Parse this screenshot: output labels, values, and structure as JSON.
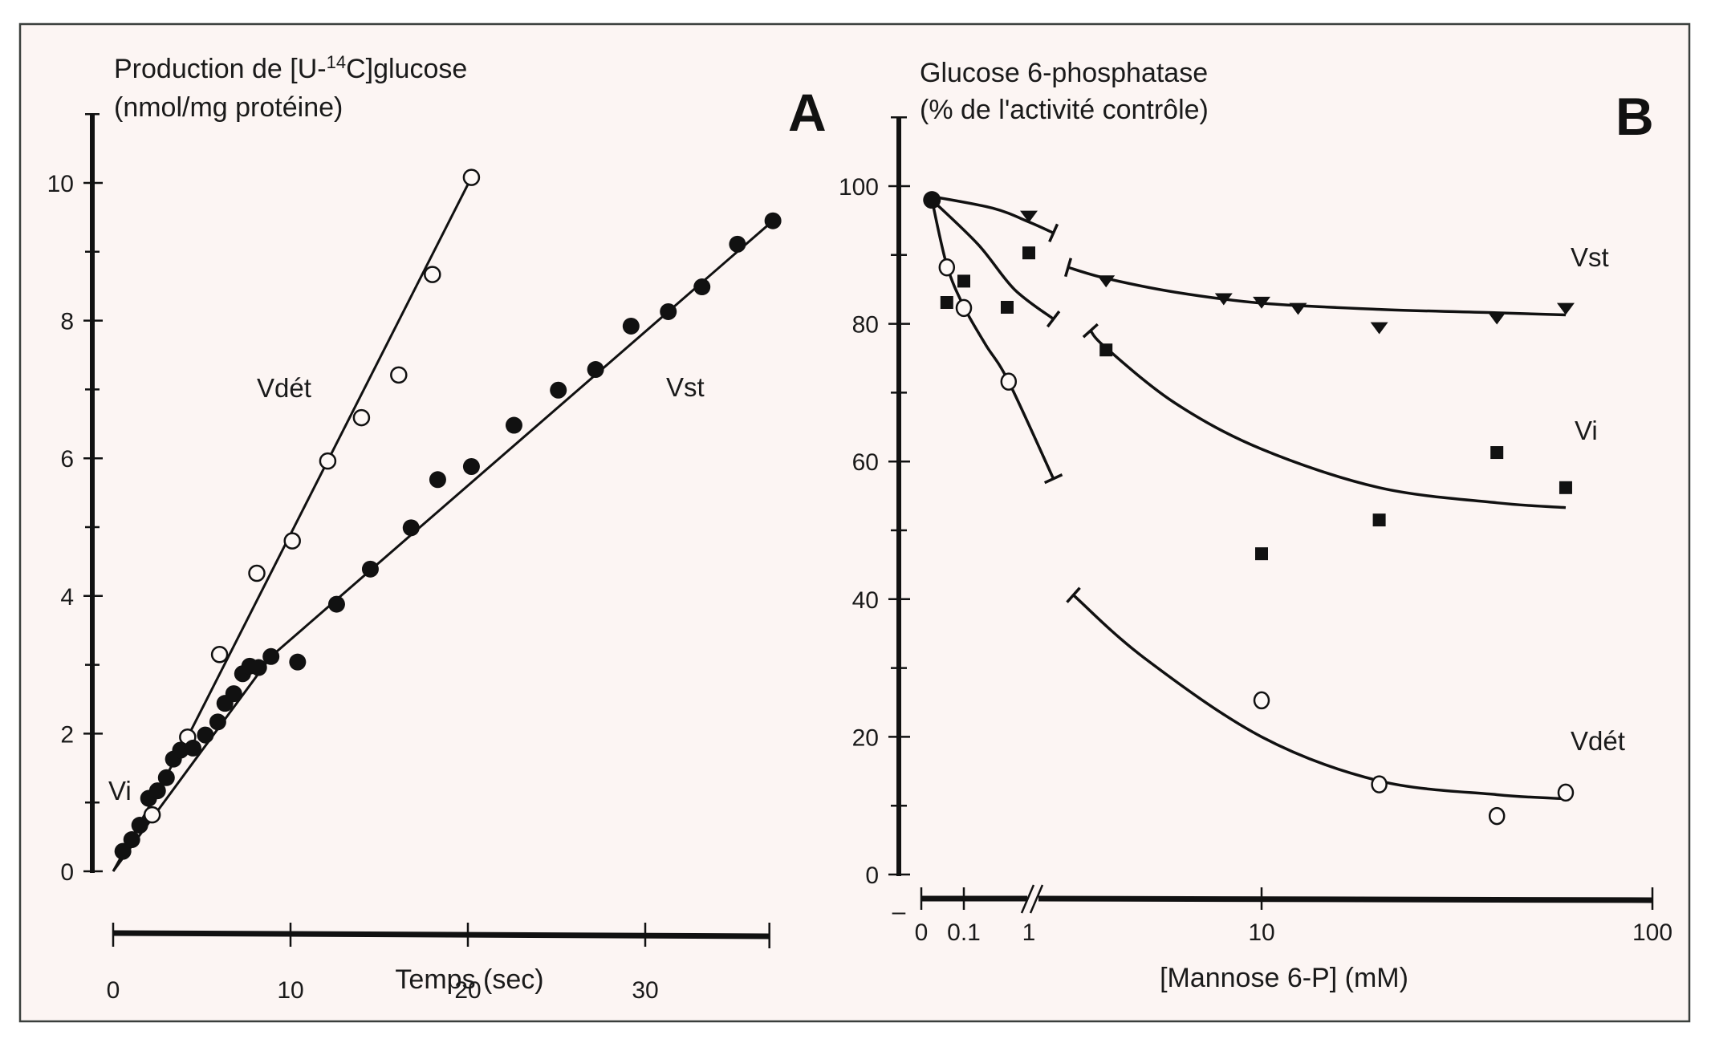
{
  "chart_data": [
    {
      "panel_label": "A",
      "type": "scatter",
      "title_line1": "Production de [U-",
      "title_sup": "14",
      "title_line1_end": "C]glucose",
      "title_line2": "(nmol/mg protéine)",
      "xlabel": "Temps (sec)",
      "ylabel": "Production de [U-14C]glucose (nmol/mg protéine)",
      "xlim": [
        0,
        37
      ],
      "ylim": [
        0,
        11
      ],
      "xticks": [
        0,
        10,
        20,
        30
      ],
      "xtick_labels": [
        "0",
        "10",
        "20",
        "30"
      ],
      "yticks": [
        0,
        2,
        4,
        6,
        8,
        10
      ],
      "ytick_labels": [
        "0",
        "2",
        "4",
        "6",
        "8",
        "10"
      ],
      "yminor_ticks": [
        1,
        3,
        5,
        7,
        9,
        11
      ],
      "grid": false,
      "annotations": [
        {
          "text": "Vdét",
          "x": 7.5,
          "y": 7.0
        },
        {
          "text": "Vst",
          "x": 31.0,
          "y": 7.0
        },
        {
          "text": "Vi",
          "x": 0.3,
          "y": 1.1
        }
      ],
      "series": [
        {
          "name": "Vdét",
          "marker": "open-circle",
          "x": [
            2.2,
            4.2,
            6.0,
            8.1,
            10.1,
            12.1,
            14.0,
            16.1,
            18.0,
            20.2
          ],
          "y": [
            0.82,
            1.95,
            3.15,
            4.33,
            4.8,
            5.96,
            6.59,
            7.21,
            8.67,
            10.08
          ],
          "fit_line": [
            [
              0,
              0
            ],
            [
              4.2,
              1.95
            ],
            [
              20.2,
              10.08
            ]
          ]
        },
        {
          "name": "Vst",
          "marker": "filled-circle",
          "x": [
            0.55,
            1.05,
            1.5,
            2.0,
            2.5,
            3.0,
            3.4,
            3.8,
            4.5,
            5.2,
            5.9,
            6.3,
            6.8,
            7.3,
            7.7,
            8.2,
            8.9,
            10.4,
            12.6,
            14.5,
            16.8,
            18.3,
            20.2,
            22.6,
            25.1,
            27.2,
            29.2,
            31.3,
            33.2,
            35.2,
            37.2
          ],
          "y": [
            0.29,
            0.46,
            0.67,
            1.06,
            1.17,
            1.36,
            1.63,
            1.76,
            1.79,
            1.98,
            2.17,
            2.44,
            2.58,
            2.87,
            2.98,
            2.96,
            3.12,
            3.04,
            3.88,
            4.39,
            4.99,
            5.69,
            5.88,
            6.48,
            6.99,
            7.29,
            7.92,
            8.13,
            8.49,
            9.11,
            9.45
          ],
          "fit_line": [
            [
              0,
              0
            ],
            [
              8.9,
              3.12
            ],
            [
              37.2,
              9.45
            ]
          ]
        }
      ]
    },
    {
      "panel_label": "B",
      "type": "scatter",
      "title_line1": "Glucose 6-phosphatase",
      "title_line2": "(% de l'activité contrôle)",
      "xlabel": "[Mannose 6-P] (mM)",
      "ylabel": "Glucose 6-phosphatase (% de l'activité contrôle)",
      "xscale": "log (broken axis between 0.1 and 1)",
      "xlim": [
        0,
        100
      ],
      "ylim": [
        0,
        110
      ],
      "xticks": [
        0,
        0.1,
        1,
        10,
        100
      ],
      "xtick_labels": [
        "0",
        "0.1",
        "1",
        "10",
        "100"
      ],
      "yticks": [
        0,
        20,
        40,
        60,
        80,
        100
      ],
      "ytick_labels": [
        "0",
        "20",
        "40",
        "60",
        "80",
        "100"
      ],
      "yminor_ticks": [
        10,
        30,
        50,
        70,
        90,
        110
      ],
      "axis_break_mark": "//",
      "minus_mark": "–",
      "grid": false,
      "annotations": [
        {
          "text": "Vst",
          "x": 62,
          "y": 88
        },
        {
          "text": "Vi",
          "x": 62,
          "y": 63
        },
        {
          "text": "Vdét",
          "x": 62,
          "y": 18
        }
      ],
      "control_point": {
        "x": 0.025,
        "y": 98,
        "marker": "filled-circle"
      },
      "series": [
        {
          "name": "Vst",
          "marker": "filled-triangle-down",
          "x": [
            1.0,
            4.0,
            8.0,
            10.0,
            12.4,
            20.0,
            40.0,
            60.0
          ],
          "y": [
            95.6,
            86.2,
            83.6,
            83.1,
            82.2,
            79.4,
            80.8,
            82.2
          ],
          "curve_before_break": [
            [
              0.025,
              98.5
            ],
            [
              0.5,
              96.8
            ],
            [
              1.0,
              94.8
            ],
            [
              1.34,
              93.2
            ]
          ],
          "curve_after_break": [
            [
              3.2,
              88.2
            ],
            [
              4.0,
              86.6
            ],
            [
              6.0,
              84.6
            ],
            [
              10.0,
              83.0
            ],
            [
              20.0,
              82.1
            ],
            [
              40.0,
              81.6
            ],
            [
              60.0,
              81.3
            ]
          ]
        },
        {
          "name": "Vi",
          "marker": "filled-square",
          "x": [
            0.06,
            0.1,
            0.7,
            1.0,
            4.0,
            10.0,
            20.0,
            40.0,
            60.0
          ],
          "y": [
            83.1,
            86.2,
            82.4,
            90.3,
            76.2,
            46.6,
            51.5,
            61.3,
            56.2
          ],
          "curve_before_break": [
            [
              0.025,
              98
            ],
            [
              0.3,
              91.5
            ],
            [
              0.8,
              85
            ],
            [
              1.34,
              80.7
            ]
          ],
          "curve_after_break": [
            [
              3.65,
              79.0
            ],
            [
              4.0,
              76.5
            ],
            [
              6.0,
              68.5
            ],
            [
              10.0,
              61.8
            ],
            [
              20.0,
              56.2
            ],
            [
              40.0,
              54.0
            ],
            [
              60.0,
              53.3
            ]
          ]
        },
        {
          "name": "Vdét",
          "marker": "open-circle",
          "x": [
            0.06,
            0.1,
            0.72,
            10.0,
            20.0,
            40.0,
            60.0
          ],
          "y": [
            88.2,
            82.3,
            71.6,
            25.3,
            13.1,
            8.5,
            11.9
          ],
          "curve_before_break": [
            [
              0.025,
              98
            ],
            [
              0.06,
              88.5
            ],
            [
              0.1,
              82.5
            ],
            [
              0.4,
              77
            ],
            [
              0.72,
              71.6
            ],
            [
              1.34,
              57.5
            ]
          ],
          "curve_after_break": [
            [
              3.3,
              40.6
            ],
            [
              5.0,
              31.5
            ],
            [
              10.0,
              20.0
            ],
            [
              20.0,
              13.6
            ],
            [
              40.0,
              11.6
            ],
            [
              60.0,
              11.0
            ]
          ]
        }
      ]
    }
  ]
}
